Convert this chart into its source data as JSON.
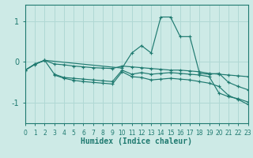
{
  "xlabel": "Humidex (Indice chaleur)",
  "xlim": [
    0,
    23
  ],
  "ylim": [
    -1.5,
    1.4
  ],
  "yticks": [
    -1,
    0,
    1
  ],
  "xticks": [
    0,
    1,
    2,
    3,
    4,
    5,
    6,
    7,
    8,
    9,
    10,
    11,
    12,
    13,
    14,
    15,
    16,
    17,
    18,
    19,
    20,
    21,
    22,
    23
  ],
  "bg_color": "#cdeae6",
  "line_color": "#1f7a70",
  "grid_color": "#b0d8d4",
  "lines": [
    {
      "x": [
        0,
        1,
        2,
        10,
        11,
        12,
        13,
        14,
        15,
        16,
        17,
        18,
        19,
        20,
        21,
        22,
        23
      ],
      "y": [
        -0.2,
        -0.06,
        0.04,
        -0.15,
        0.22,
        0.4,
        0.22,
        1.1,
        1.1,
        0.62,
        0.62,
        -0.28,
        -0.3,
        -0.28,
        -0.5,
        -0.6,
        -0.68
      ]
    },
    {
      "x": [
        0,
        1,
        2,
        3,
        4,
        5,
        6,
        7,
        8,
        9,
        10,
        11,
        12,
        13,
        14,
        15,
        16,
        17,
        18,
        19,
        20,
        21,
        22,
        23
      ],
      "y": [
        -0.2,
        -0.05,
        0.04,
        -0.05,
        -0.07,
        -0.1,
        -0.12,
        -0.14,
        -0.15,
        -0.16,
        -0.1,
        -0.12,
        -0.14,
        -0.16,
        -0.18,
        -0.2,
        -0.2,
        -0.22,
        -0.24,
        -0.28,
        -0.3,
        -0.32,
        -0.34,
        -0.36
      ]
    },
    {
      "x": [
        0,
        1,
        2,
        3,
        4,
        5,
        6,
        7,
        8,
        9,
        10,
        11,
        12,
        13,
        14,
        15,
        16,
        17,
        18,
        19,
        20,
        21,
        22,
        23
      ],
      "y": [
        -0.2,
        -0.05,
        0.04,
        -0.3,
        -0.38,
        -0.4,
        -0.42,
        -0.44,
        -0.46,
        -0.48,
        -0.2,
        -0.3,
        -0.26,
        -0.3,
        -0.28,
        -0.26,
        -0.28,
        -0.3,
        -0.32,
        -0.36,
        -0.76,
        -0.85,
        -0.9,
        -0.98
      ]
    },
    {
      "x": [
        3,
        4,
        5,
        6,
        7,
        8,
        9,
        10,
        11,
        12,
        13,
        14,
        15,
        16,
        17,
        18,
        19,
        20,
        21,
        22,
        23
      ],
      "y": [
        -0.32,
        -0.4,
        -0.45,
        -0.48,
        -0.5,
        -0.52,
        -0.54,
        -0.24,
        -0.36,
        -0.38,
        -0.44,
        -0.42,
        -0.4,
        -0.42,
        -0.44,
        -0.48,
        -0.52,
        -0.6,
        -0.82,
        -0.92,
        -1.04
      ]
    }
  ]
}
